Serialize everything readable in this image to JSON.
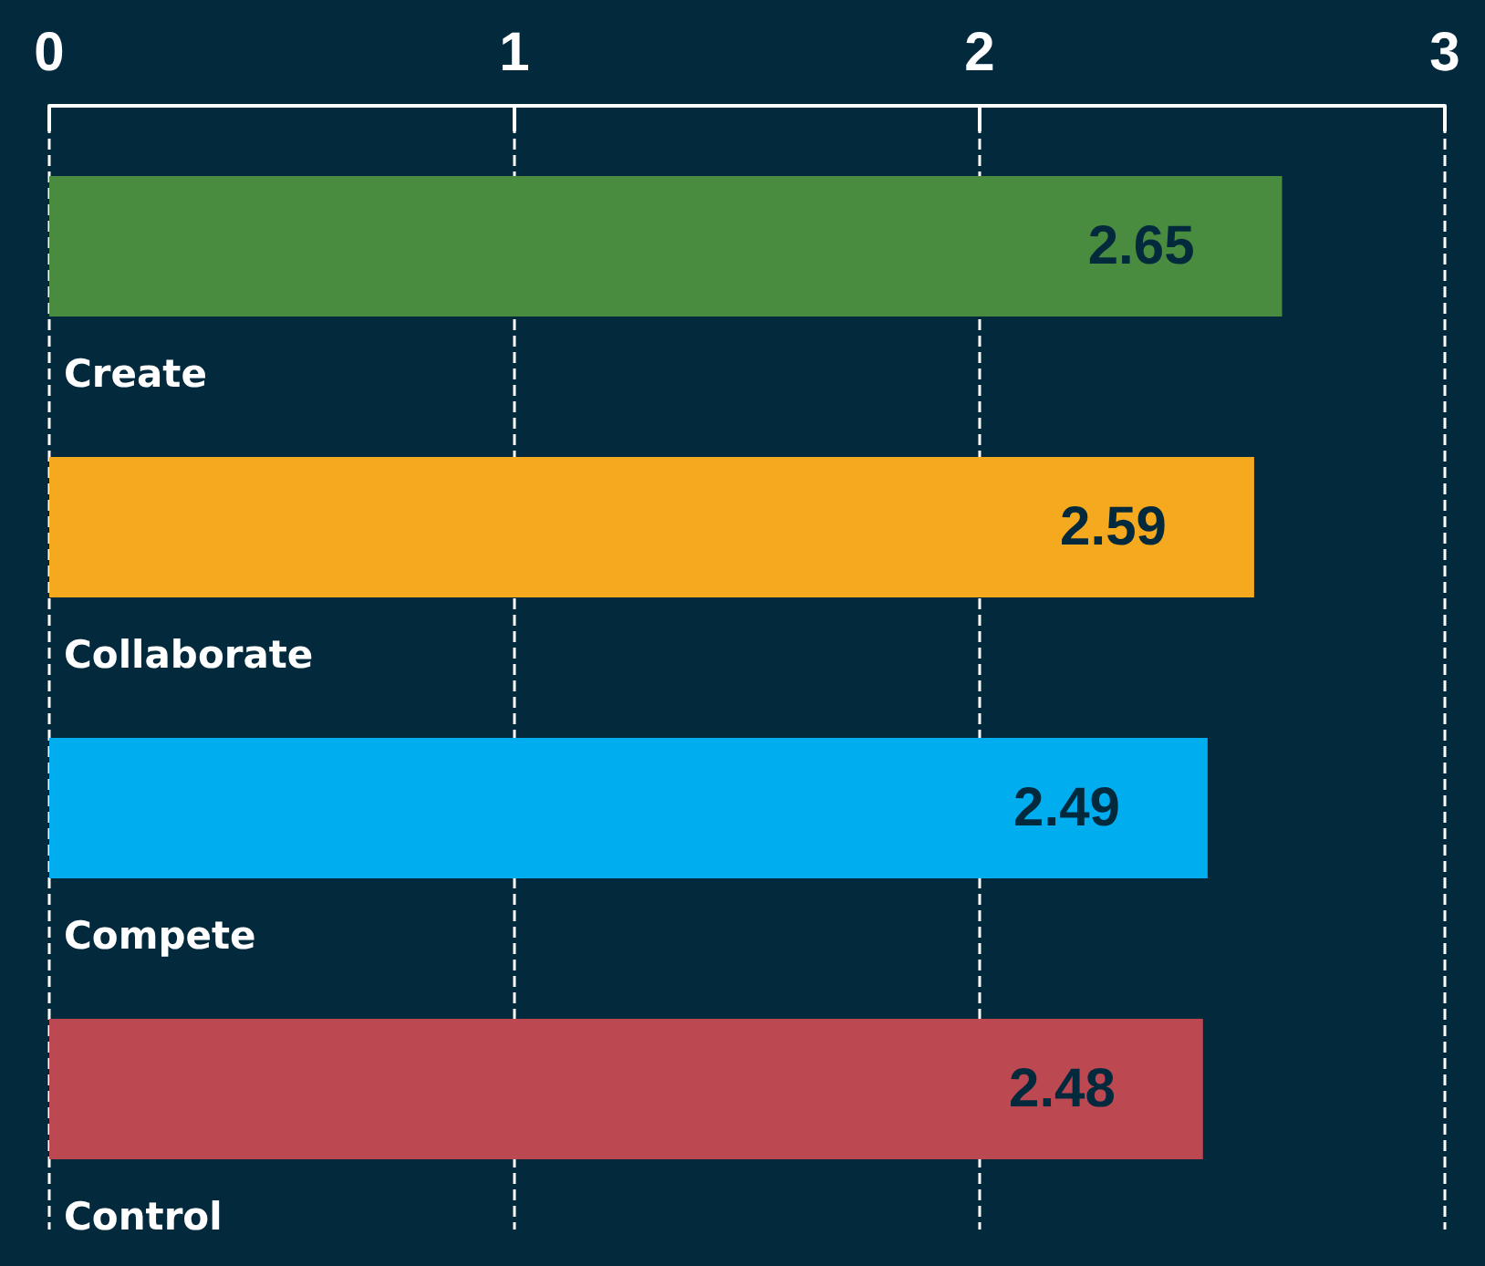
{
  "chart_data": {
    "type": "bar",
    "orientation": "horizontal",
    "categories": [
      "Create",
      "Collaborate",
      "Compete",
      "Control"
    ],
    "values": [
      2.65,
      2.59,
      2.49,
      2.48
    ],
    "colors": [
      "#4a8c3f",
      "#f5a91e",
      "#00adee",
      "#bc4852"
    ],
    "xlim": [
      0,
      3
    ],
    "xticks": [
      0,
      1,
      2,
      3
    ],
    "grid": "x",
    "data_labels": true
  }
}
